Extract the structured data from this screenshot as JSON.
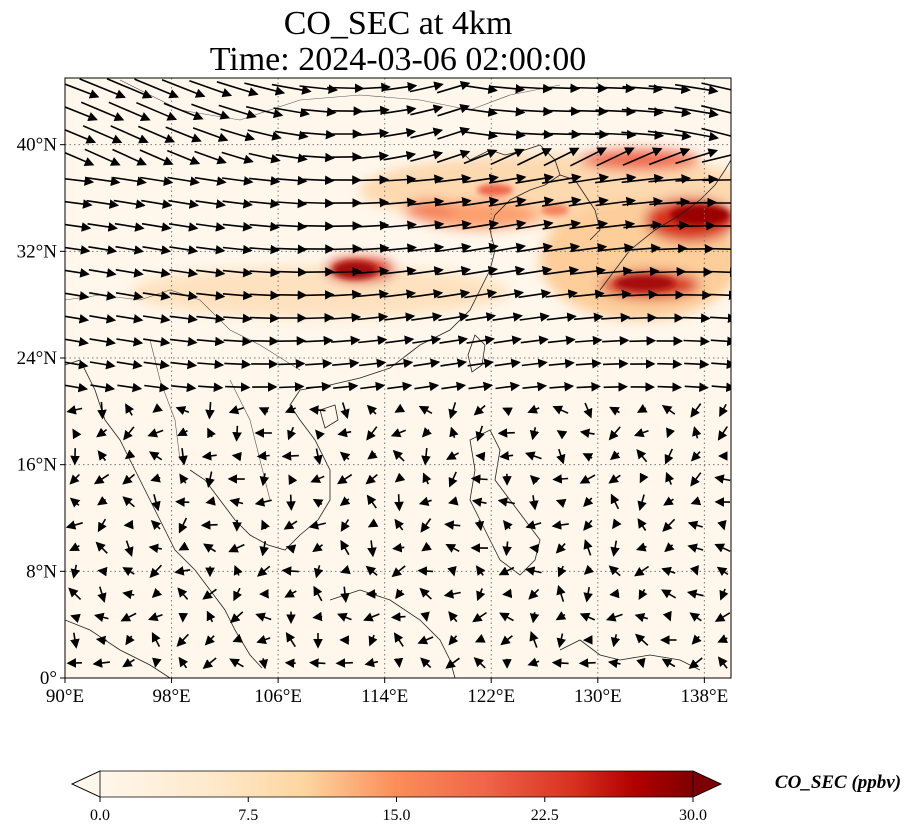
{
  "title": {
    "line1": "CO_SEC at 4km",
    "line2": "Time: 2024-03-06 02:00:00"
  },
  "map": {
    "projection": "PlateCarree",
    "lon_range": [
      90,
      140
    ],
    "lat_range": [
      0,
      45
    ],
    "lon_ticks": [
      {
        "value": 90,
        "label": "90°E"
      },
      {
        "value": 98,
        "label": "98°E"
      },
      {
        "value": 106,
        "label": "106°E"
      },
      {
        "value": 114,
        "label": "114°E"
      },
      {
        "value": 122,
        "label": "122°E"
      },
      {
        "value": 130,
        "label": "130°E"
      },
      {
        "value": 138,
        "label": "138°E"
      }
    ],
    "lat_ticks": [
      {
        "value": 0,
        "label": "0°"
      },
      {
        "value": 8,
        "label": "8°N"
      },
      {
        "value": 16,
        "label": "16°N"
      },
      {
        "value": 24,
        "label": "24°N"
      },
      {
        "value": 32,
        "label": "32°N"
      },
      {
        "value": 40,
        "label": "40°N"
      }
    ],
    "gridlines": "dotted",
    "wind_vectors": "shown",
    "coastlines": "shown"
  },
  "colorbar": {
    "title": "CO_SEC (ppbv)",
    "min": 0.0,
    "max": 30.0,
    "extend": "both",
    "colormap": "OrRd",
    "ticks": [
      {
        "value": 0.0,
        "label": "0.0"
      },
      {
        "value": 7.5,
        "label": "7.5"
      },
      {
        "value": 15.0,
        "label": "15.0"
      },
      {
        "value": 22.5,
        "label": "22.5"
      },
      {
        "value": 30.0,
        "label": "30.0"
      }
    ]
  },
  "colors": {
    "background": "#fff7ec",
    "low": "#fdd49e",
    "mid": "#ef6548",
    "high": "#b30000",
    "max": "#7f0000"
  }
}
